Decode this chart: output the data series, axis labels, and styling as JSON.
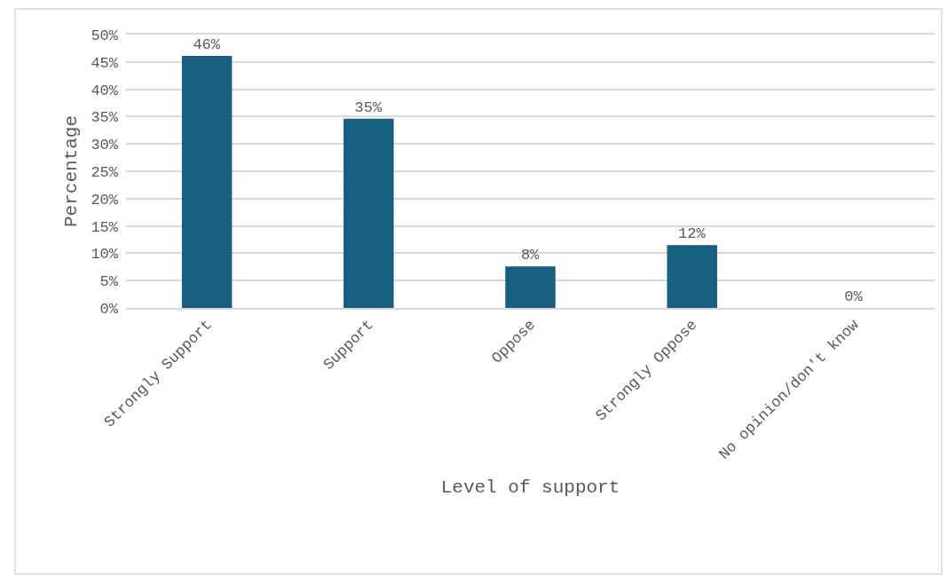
{
  "chart_data": {
    "type": "bar",
    "categories": [
      "Strongly Support",
      "Support",
      "Oppose",
      "Strongly Oppose",
      "No opinion/don't know"
    ],
    "values": [
      46.1,
      34.6,
      7.6,
      11.5,
      0
    ],
    "value_labels": [
      "46%",
      "35%",
      "8%",
      "12%",
      "0%"
    ],
    "color": "#175f80",
    "xlabel": "Level of support",
    "ylabel": "Percentage",
    "ylim": [
      0,
      50
    ],
    "yticks": [
      {
        "value": 0,
        "label": "0%"
      },
      {
        "value": 5,
        "label": "5%"
      },
      {
        "value": 10,
        "label": "10%"
      },
      {
        "value": 15,
        "label": "15%"
      },
      {
        "value": 20,
        "label": "20%"
      },
      {
        "value": 25,
        "label": "25%"
      },
      {
        "value": 30,
        "label": "30%"
      },
      {
        "value": 35,
        "label": "35%"
      },
      {
        "value": 40,
        "label": "40%"
      },
      {
        "value": 45,
        "label": "45%"
      },
      {
        "value": 50,
        "label": "50%"
      }
    ],
    "grid": "y"
  }
}
